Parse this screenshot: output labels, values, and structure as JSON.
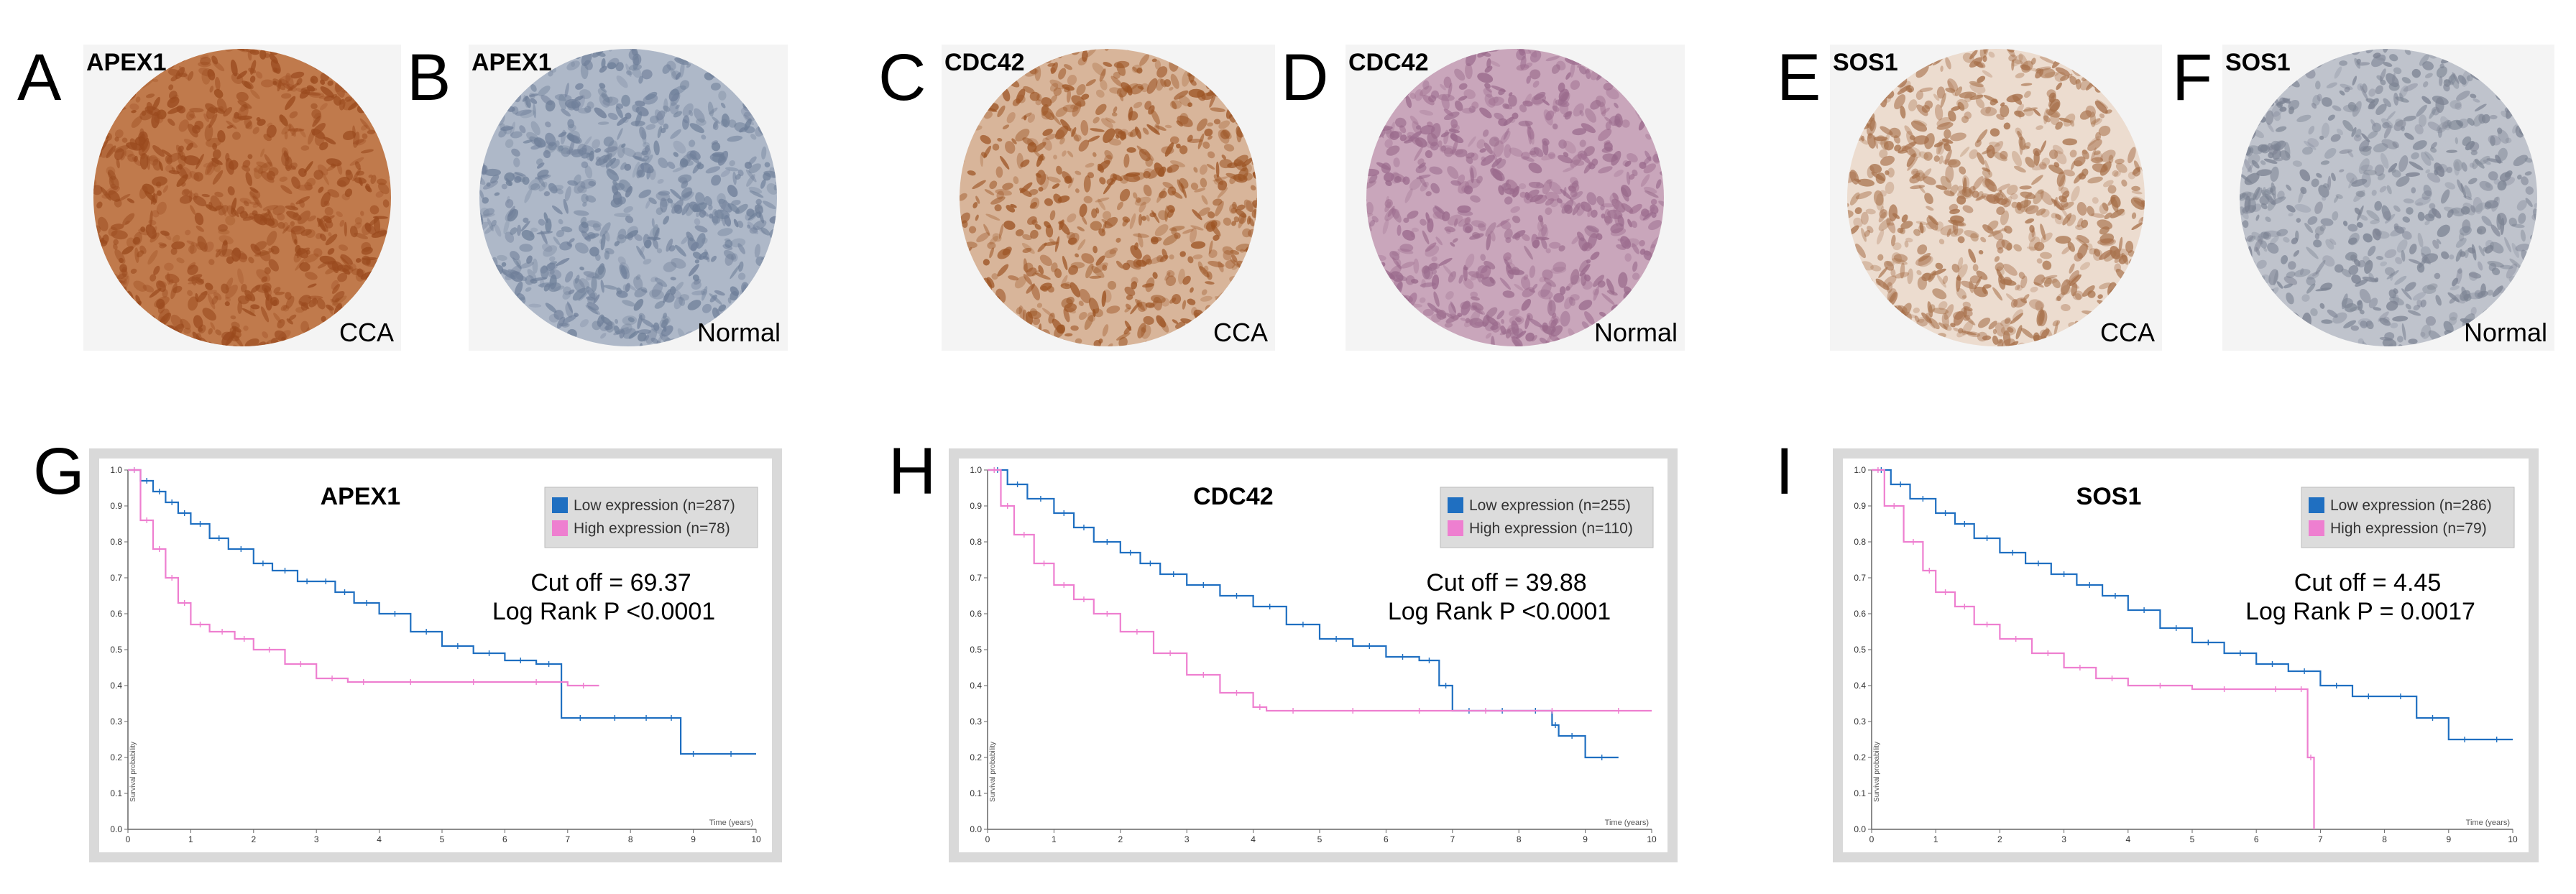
{
  "panels": {
    "A": {
      "letter": "A",
      "gene": "APEX1",
      "tissue": "CCA",
      "stain": "#9a4a1e",
      "stain2": "#c07a4c"
    },
    "B": {
      "letter": "B",
      "gene": "APEX1",
      "tissue": "Normal",
      "stain": "#6f7f99",
      "stain2": "#aeb8c8"
    },
    "C": {
      "letter": "C",
      "gene": "CDC42",
      "tissue": "CCA",
      "stain": "#9c5424",
      "stain2": "#d8b59a"
    },
    "D": {
      "letter": "D",
      "gene": "CDC42",
      "tissue": "Normal",
      "stain": "#9a6a8c",
      "stain2": "#c9a6bb"
    },
    "E": {
      "letter": "E",
      "gene": "SOS1",
      "tissue": "CCA",
      "stain": "#a7704a",
      "stain2": "#ecdccf"
    },
    "F": {
      "letter": "F",
      "gene": "SOS1",
      "tissue": "Normal",
      "stain": "#7b8292",
      "stain2": "#bfc3cc"
    }
  },
  "km_common": {
    "low_color": "#1f6fc1",
    "high_color": "#ee7fd0",
    "xlabel": "Time (years)",
    "ylabel": "Survival probability",
    "y_ticks": [
      "0.0",
      "0.1",
      "0.2",
      "0.3",
      "0.4",
      "0.5",
      "0.6",
      "0.7",
      "0.8",
      "0.9",
      "1.0"
    ],
    "x_ticks": [
      "0",
      "1",
      "2",
      "3",
      "4",
      "5",
      "6",
      "7",
      "8",
      "9",
      "10"
    ]
  },
  "chart_data": [
    {
      "type": "line",
      "panel": "G",
      "title": "APEX1",
      "xlabel": "Time (years)",
      "ylabel": "Survival probability",
      "xlim": [
        0,
        10
      ],
      "ylim": [
        0,
        1
      ],
      "cutoff_text": "Cut off = 69.37",
      "pvalue_text": "Log Rank P <0.0001",
      "series": [
        {
          "name": "Low expression (n=287)",
          "color": "#1f6fc1",
          "x": [
            0,
            0.2,
            0.4,
            0.6,
            0.8,
            1,
            1.3,
            1.6,
            2,
            2.3,
            2.7,
            3,
            3.3,
            3.6,
            4,
            4.5,
            5,
            5.5,
            6,
            6.5,
            6.9,
            7.5,
            8,
            8.5,
            8.8,
            9.2,
            10
          ],
          "y": [
            1,
            0.97,
            0.94,
            0.91,
            0.88,
            0.85,
            0.81,
            0.78,
            0.74,
            0.72,
            0.69,
            0.69,
            0.66,
            0.63,
            0.6,
            0.55,
            0.51,
            0.49,
            0.47,
            0.46,
            0.31,
            0.31,
            0.31,
            0.31,
            0.21,
            0.21,
            0.21
          ]
        },
        {
          "name": "High expression (n=78)",
          "color": "#ee7fd0",
          "x": [
            0,
            0.2,
            0.4,
            0.6,
            0.8,
            1,
            1.3,
            1.7,
            2,
            2.5,
            3,
            3.5,
            4,
            5,
            6,
            7,
            7.5
          ],
          "y": [
            1,
            0.86,
            0.78,
            0.7,
            0.63,
            0.57,
            0.55,
            0.53,
            0.5,
            0.46,
            0.42,
            0.41,
            0.41,
            0.41,
            0.41,
            0.4,
            0.4
          ]
        }
      ]
    },
    {
      "type": "line",
      "panel": "H",
      "title": "CDC42",
      "xlabel": "Time (years)",
      "ylabel": "Survival probability",
      "xlim": [
        0,
        10
      ],
      "ylim": [
        0,
        1
      ],
      "cutoff_text": "Cut off = 39.88",
      "pvalue_text": "Log Rank P <0.0001",
      "series": [
        {
          "name": "Low expression (n=255)",
          "color": "#1f6fc1",
          "x": [
            0,
            0.3,
            0.6,
            1,
            1.3,
            1.6,
            2,
            2.3,
            2.6,
            3,
            3.5,
            4,
            4.5,
            5,
            5.5,
            6,
            6.5,
            6.8,
            7,
            7.5,
            8,
            8.5,
            8.6,
            9,
            9.5
          ],
          "y": [
            1,
            0.96,
            0.92,
            0.88,
            0.84,
            0.8,
            0.77,
            0.74,
            0.71,
            0.68,
            0.65,
            0.62,
            0.57,
            0.53,
            0.51,
            0.48,
            0.47,
            0.4,
            0.33,
            0.33,
            0.33,
            0.29,
            0.26,
            0.2,
            0.2
          ]
        },
        {
          "name": "High expression (n=110)",
          "color": "#ee7fd0",
          "x": [
            0,
            0.2,
            0.4,
            0.7,
            1,
            1.3,
            1.6,
            2,
            2.5,
            3,
            3.5,
            4,
            4.2,
            5,
            6,
            7,
            8,
            9,
            10
          ],
          "y": [
            1,
            0.9,
            0.82,
            0.74,
            0.68,
            0.64,
            0.6,
            0.55,
            0.49,
            0.43,
            0.38,
            0.34,
            0.33,
            0.33,
            0.33,
            0.33,
            0.33,
            0.33,
            0.33
          ]
        }
      ]
    },
    {
      "type": "line",
      "panel": "I",
      "title": "SOS1",
      "xlabel": "Time (years)",
      "ylabel": "Survival probability",
      "xlim": [
        0,
        10
      ],
      "ylim": [
        0,
        1
      ],
      "cutoff_text": "Cut off = 4.45",
      "pvalue_text": "Log Rank P = 0.0017",
      "series": [
        {
          "name": "Low expression (n=286)",
          "color": "#1f6fc1",
          "x": [
            0,
            0.3,
            0.6,
            1,
            1.3,
            1.6,
            2,
            2.4,
            2.8,
            3.2,
            3.6,
            4,
            4.5,
            5,
            5.5,
            6,
            6.5,
            7,
            7.5,
            8,
            8.5,
            9,
            9.5,
            10
          ],
          "y": [
            1,
            0.96,
            0.92,
            0.88,
            0.85,
            0.81,
            0.77,
            0.74,
            0.71,
            0.68,
            0.65,
            0.61,
            0.56,
            0.52,
            0.49,
            0.46,
            0.44,
            0.4,
            0.37,
            0.37,
            0.31,
            0.25,
            0.25,
            0.25
          ]
        },
        {
          "name": "High expression (n=79)",
          "color": "#ee7fd0",
          "x": [
            0,
            0.2,
            0.5,
            0.8,
            1,
            1.3,
            1.6,
            2,
            2.5,
            3,
            3.5,
            4,
            5,
            6,
            6.6,
            6.8,
            6.9
          ],
          "y": [
            1,
            0.9,
            0.8,
            0.72,
            0.66,
            0.62,
            0.57,
            0.53,
            0.49,
            0.45,
            0.42,
            0.4,
            0.39,
            0.39,
            0.39,
            0.2,
            0.0
          ]
        }
      ]
    }
  ]
}
